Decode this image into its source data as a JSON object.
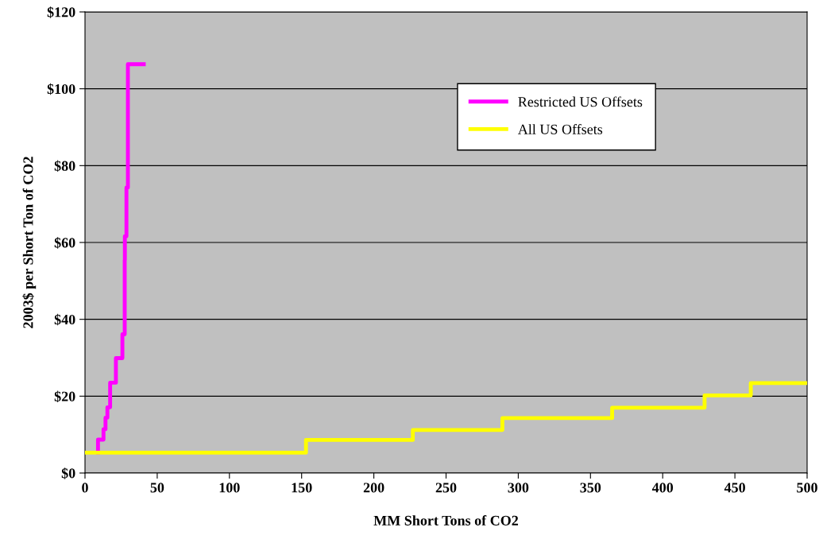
{
  "chart_data": {
    "type": "step",
    "xlabel": "MM Short Tons of CO2",
    "ylabel": "2003$ per Short Ton of CO2",
    "series": [
      {
        "name": "Restricted US Offsets",
        "color": "#ff00ff",
        "x": [
          9.0,
          9.0,
          12.8,
          14.2,
          15.5,
          17.4,
          21.4,
          25.9,
          27.5,
          27.6,
          28.7,
          29.7,
          40.7
        ],
        "values": [
          5.3,
          8.7,
          11.4,
          14.4,
          17.1,
          23.5,
          29.9,
          36.1,
          55.4,
          61.6,
          74.3,
          106.4,
          106.4
        ]
      },
      {
        "name": "All US Offsets",
        "color": "#ffff00",
        "x": [
          0,
          153,
          227,
          289,
          365,
          429,
          461,
          500
        ],
        "values": [
          5.3,
          8.6,
          11.2,
          14.3,
          17.0,
          20.2,
          23.4,
          23.4
        ]
      }
    ],
    "xlim": [
      0,
      500
    ],
    "xticks": [
      0,
      50,
      100,
      150,
      200,
      250,
      300,
      350,
      400,
      450,
      500
    ],
    "ylim": [
      0,
      120
    ],
    "yticks": [
      {
        "value": 0,
        "label": "$0"
      },
      {
        "value": 20,
        "label": "$20"
      },
      {
        "value": 40,
        "label": "$40"
      },
      {
        "value": 60,
        "label": "$60"
      },
      {
        "value": 80,
        "label": "$80"
      },
      {
        "value": 100,
        "label": "$100"
      },
      {
        "value": 120,
        "label": "$120"
      }
    ],
    "grid": "y",
    "legend": "top right",
    "line_style": "solid",
    "marker": "none"
  }
}
